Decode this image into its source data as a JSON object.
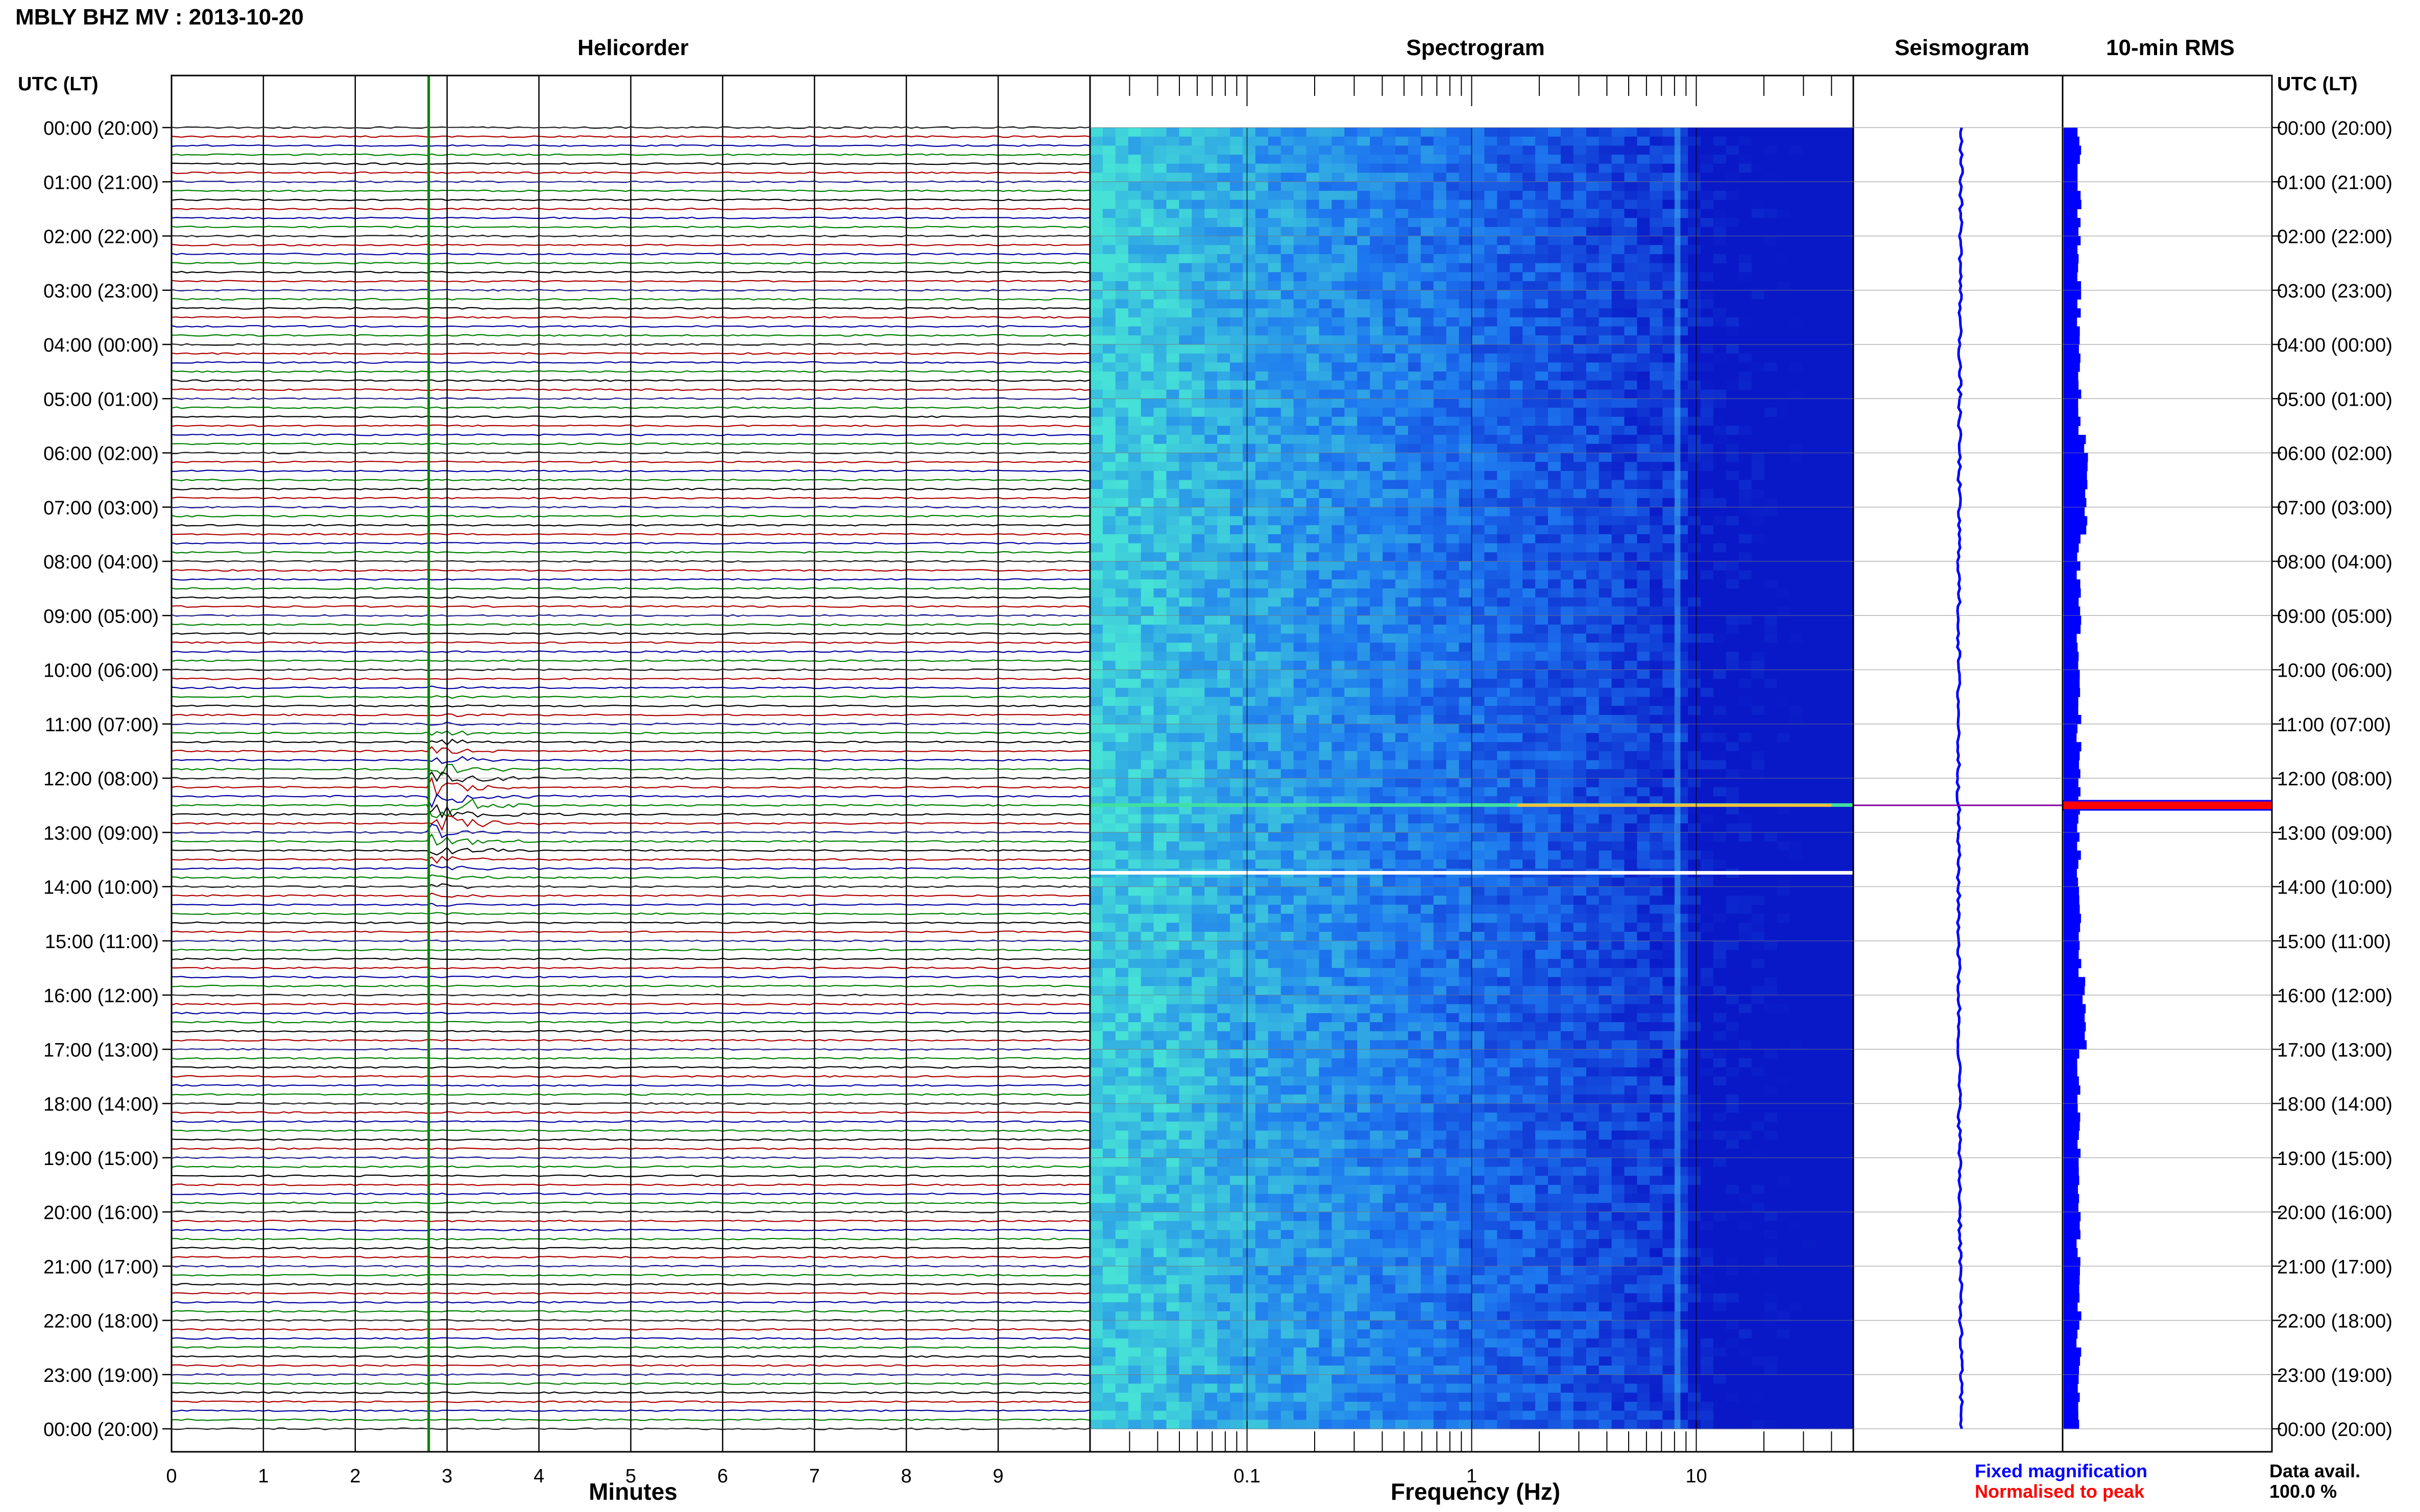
{
  "page": {
    "title": "MBLY BHZ MV : 2013-10-20"
  },
  "panels": {
    "helicorder_title": "Helicorder",
    "spectrogram_title": "Spectrogram",
    "seismogram_title": "Seismogram",
    "rms_title": "10-min RMS"
  },
  "time_axis": {
    "left_header": "UTC (LT)",
    "right_header": "UTC (LT)"
  },
  "legend": {
    "fixed_magnification": "Fixed magnification",
    "normalised_to_peak": "Normalised to peak",
    "data_avail_label": "Data avail.",
    "data_avail_value": "100.0 %"
  },
  "colors": {
    "trace_black": "#000000",
    "trace_red": "#b00000",
    "trace_blue": "#0000a0",
    "trace_green": "#008000",
    "event_marker": "#008000",
    "rms_fixed": "#0000ff",
    "rms_normalised": "#ff0000",
    "spectrogram_low": "#0b1fd0",
    "spectrogram_high": "#33e6e0"
  },
  "chart_data": [
    {
      "type": "line",
      "name": "helicorder",
      "title": "Helicorder",
      "xlabel": "Minutes",
      "xlim": [
        0,
        10
      ],
      "x_ticks": [
        0,
        1,
        2,
        3,
        4,
        5,
        6,
        7,
        8,
        9
      ],
      "row_minutes": 10,
      "rows": 144,
      "trace_color_cycle": [
        "black",
        "red",
        "blue",
        "green"
      ],
      "event_marker_minute": 2.8,
      "event_peak_time_utc": "12:30",
      "y_tick_labels": [
        "00:00 (20:00)",
        "01:00 (21:00)",
        "02:00 (22:00)",
        "03:00 (23:00)",
        "04:00 (00:00)",
        "05:00 (01:00)",
        "06:00 (02:00)",
        "07:00 (03:00)",
        "08:00 (04:00)",
        "09:00 (05:00)",
        "10:00 (06:00)",
        "11:00 (07:00)",
        "12:00 (08:00)",
        "13:00 (09:00)",
        "14:00 (10:00)",
        "15:00 (11:00)",
        "16:00 (12:00)",
        "17:00 (13:00)",
        "18:00 (14:00)",
        "19:00 (15:00)",
        "20:00 (16:00)",
        "21:00 (17:00)",
        "22:00 (18:00)",
        "23:00 (19:00)",
        "00:00 (20:00)"
      ]
    },
    {
      "type": "heatmap",
      "name": "spectrogram",
      "title": "Spectrogram",
      "xlabel": "Frequency (Hz)",
      "x_scale": "log",
      "xlim": [
        0.02,
        50
      ],
      "x_tick_labels": [
        "0.1",
        "1",
        "10"
      ],
      "x_tick_values": [
        0.1,
        1,
        10
      ],
      "y": "time of day (UTC)",
      "features": {
        "energy_band_hz": [
          8,
          8.5
        ],
        "event_line_utc": "12:30",
        "gap_line_utc": "13:45"
      }
    },
    {
      "type": "line",
      "name": "seismogram",
      "title": "Seismogram",
      "description_axis": "amplitude vs time of day"
    },
    {
      "type": "bar",
      "name": "rms_10min",
      "title": "10-min RMS",
      "series": [
        {
          "name": "Fixed magnification",
          "color": "#0000ff"
        },
        {
          "name": "Normalised to peak",
          "color": "#ff0000"
        }
      ],
      "peak_time_utc": "12:30"
    }
  ]
}
